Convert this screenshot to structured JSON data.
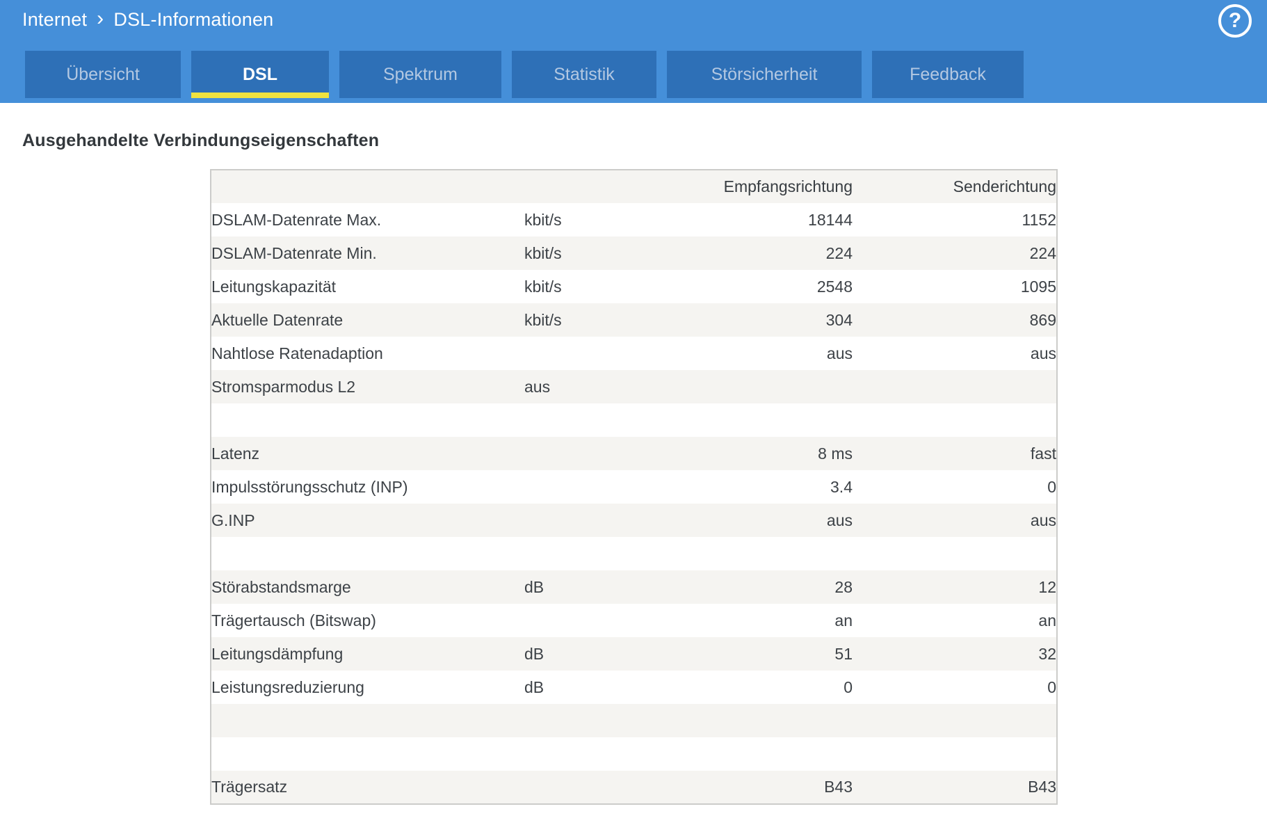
{
  "colors": {
    "header_bg": "#458fd9",
    "tab_bg": "#2e70b7",
    "tab_inactive_text": "#b3c8e2",
    "active_underline": "#f0e23f",
    "row_stripe": "#f5f4f1",
    "table_border": "#ccccca",
    "text": "#3d4247"
  },
  "breadcrumb": {
    "section": "Internet",
    "separator": "›",
    "page": "DSL-Informationen"
  },
  "help": {
    "icon": "question-mark",
    "label": "?"
  },
  "tabs": {
    "active_label": "DSL",
    "items": [
      {
        "label": "Übersicht"
      },
      {
        "label": "DSL"
      },
      {
        "label": "Spektrum"
      },
      {
        "label": "Statistik"
      },
      {
        "label": "Störsicherheit"
      },
      {
        "label": "Feedback"
      }
    ]
  },
  "section_title": "Ausgehandelte Verbindungseigenschaften",
  "table": {
    "columns": {
      "label": "",
      "unit": "",
      "down": "Empfangsrichtung",
      "up": "Senderichtung"
    },
    "rows": [
      {
        "label": "DSLAM-Datenrate Max.",
        "unit": "kbit/s",
        "down": "18144",
        "up": "1152"
      },
      {
        "label": "DSLAM-Datenrate Min.",
        "unit": "kbit/s",
        "down": "224",
        "up": "224"
      },
      {
        "label": "Leitungskapazität",
        "unit": "kbit/s",
        "down": "2548",
        "up": "1095"
      },
      {
        "label": "Aktuelle Datenrate",
        "unit": "kbit/s",
        "down": "304",
        "up": "869"
      },
      {
        "label": "Nahtlose Ratenadaption",
        "unit": "",
        "down": "aus",
        "up": "aus"
      },
      {
        "label": "Stromsparmodus L2",
        "unit": "aus",
        "down": "",
        "up": ""
      },
      {
        "spacer": true
      },
      {
        "label": "Latenz",
        "unit": "",
        "down": "8 ms",
        "up": "fast"
      },
      {
        "label": "Impulsstörungsschutz (INP)",
        "unit": "",
        "down": "3.4",
        "up": "0"
      },
      {
        "label": "G.INP",
        "unit": "",
        "down": "aus",
        "up": "aus"
      },
      {
        "spacer": true
      },
      {
        "label": "Störabstandsmarge",
        "unit": "dB",
        "down": "28",
        "up": "12"
      },
      {
        "label": "Trägertausch (Bitswap)",
        "unit": "",
        "down": "an",
        "up": "an"
      },
      {
        "label": "Leitungsdämpfung",
        "unit": "dB",
        "down": "51",
        "up": "32"
      },
      {
        "label": "Leistungsreduzierung",
        "unit": "dB",
        "down": "0",
        "up": "0"
      },
      {
        "spacer": true
      },
      {
        "spacer": true
      },
      {
        "label": "Trägersatz",
        "unit": "",
        "down": "B43",
        "up": "B43"
      }
    ]
  }
}
